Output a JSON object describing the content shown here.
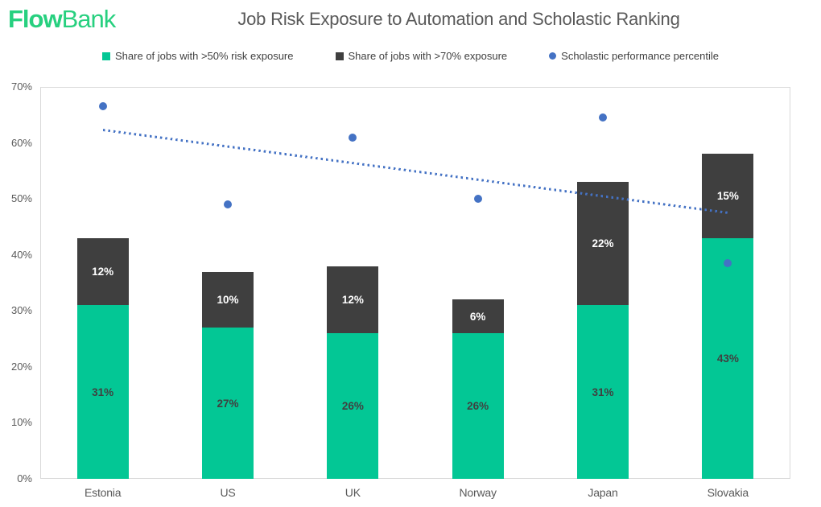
{
  "header": {
    "logo": {
      "bold": "Flow",
      "light": "Bank"
    },
    "title": "Job Risk Exposure to Automation and Scholastic Ranking"
  },
  "colors": {
    "logo_green": "#27D07F",
    "bar_green": "#03C795",
    "bar_dark": "#3F3F3F",
    "scatter_blue": "#4472C4",
    "title_gray": "#595959",
    "axis_label_gray": "#595959",
    "legend_text": "#404040",
    "green_label_dark": "#404040",
    "plot_border": "#D9D9D9"
  },
  "chart_data": {
    "type": "combo",
    "subtype": "stacked-bar with scatter overlay and dotted trendline",
    "title": "Job Risk Exposure to Automation and Scholastic Ranking",
    "categories": [
      "Estonia",
      "US",
      "UK",
      "Norway",
      "Japan",
      "Slovakia"
    ],
    "series": [
      {
        "name": "Share of jobs with >50% risk exposure",
        "type": "stacked-bar",
        "color": "#03C795",
        "values": [
          31,
          27,
          26,
          26,
          31,
          43
        ],
        "labels": [
          "31%",
          "27%",
          "26%",
          "26%",
          "31%",
          "43%"
        ]
      },
      {
        "name": "Share of jobs with >70% exposure",
        "type": "stacked-bar",
        "color": "#3F3F3F",
        "values": [
          12,
          10,
          12,
          6,
          22,
          15
        ],
        "labels": [
          "12%",
          "10%",
          "12%",
          "6%",
          "22%",
          "15%"
        ]
      },
      {
        "name": "Scholastic performance percentile",
        "type": "scatter",
        "color": "#4472C4",
        "values": [
          66.5,
          49,
          61,
          50,
          64.5,
          38.5
        ]
      }
    ],
    "stack_totals": [
      43,
      37,
      38,
      32,
      53,
      58
    ],
    "trendline": {
      "of_series": "Scholastic performance percentile",
      "start_value": 62.3,
      "end_value": 47.5,
      "color": "#4472C4",
      "style": "dotted"
    },
    "y_axis": {
      "min": 0,
      "max": 70,
      "step": 10,
      "tick_labels": [
        "0%",
        "10%",
        "20%",
        "30%",
        "40%",
        "50%",
        "60%",
        "70%"
      ]
    },
    "grid": false,
    "legend_position": "top",
    "plot_background": "#FFFFFF"
  }
}
